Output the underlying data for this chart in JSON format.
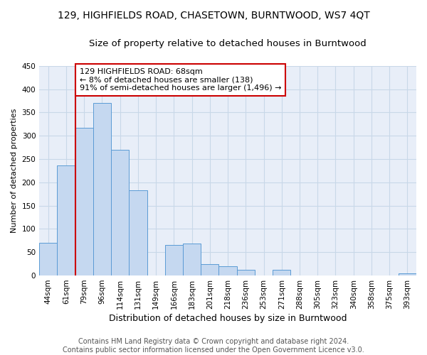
{
  "title": "129, HIGHFIELDS ROAD, CHASETOWN, BURNTWOOD, WS7 4QT",
  "subtitle": "Size of property relative to detached houses in Burntwood",
  "xlabel": "Distribution of detached houses by size in Burntwood",
  "ylabel": "Number of detached properties",
  "categories": [
    "44sqm",
    "61sqm",
    "79sqm",
    "96sqm",
    "114sqm",
    "131sqm",
    "149sqm",
    "166sqm",
    "183sqm",
    "201sqm",
    "218sqm",
    "236sqm",
    "253sqm",
    "271sqm",
    "288sqm",
    "305sqm",
    "323sqm",
    "340sqm",
    "358sqm",
    "375sqm",
    "393sqm"
  ],
  "values": [
    70,
    237,
    317,
    370,
    270,
    183,
    0,
    65,
    68,
    25,
    20,
    12,
    0,
    12,
    0,
    0,
    0,
    0,
    0,
    0,
    4
  ],
  "bar_color": "#c5d8f0",
  "bar_edge_color": "#5b9bd5",
  "vline_color": "#cc0000",
  "vline_x_index": 1.5,
  "annotation_text": "129 HIGHFIELDS ROAD: 68sqm\n← 8% of detached houses are smaller (138)\n91% of semi-detached houses are larger (1,496) →",
  "annotation_box_color": "#ffffff",
  "annotation_box_edge_color": "#cc0000",
  "ylim": [
    0,
    450
  ],
  "yticks": [
    0,
    50,
    100,
    150,
    200,
    250,
    300,
    350,
    400,
    450
  ],
  "footer_text": "Contains HM Land Registry data © Crown copyright and database right 2024.\nContains public sector information licensed under the Open Government Licence v3.0.",
  "grid_color": "#c8d8e8",
  "background_color": "#e8eef8",
  "fig_background": "#ffffff",
  "title_fontsize": 10,
  "subtitle_fontsize": 9.5,
  "annotation_fontsize": 8,
  "xlabel_fontsize": 9,
  "ylabel_fontsize": 8,
  "footer_fontsize": 7,
  "tick_fontsize": 7.5
}
